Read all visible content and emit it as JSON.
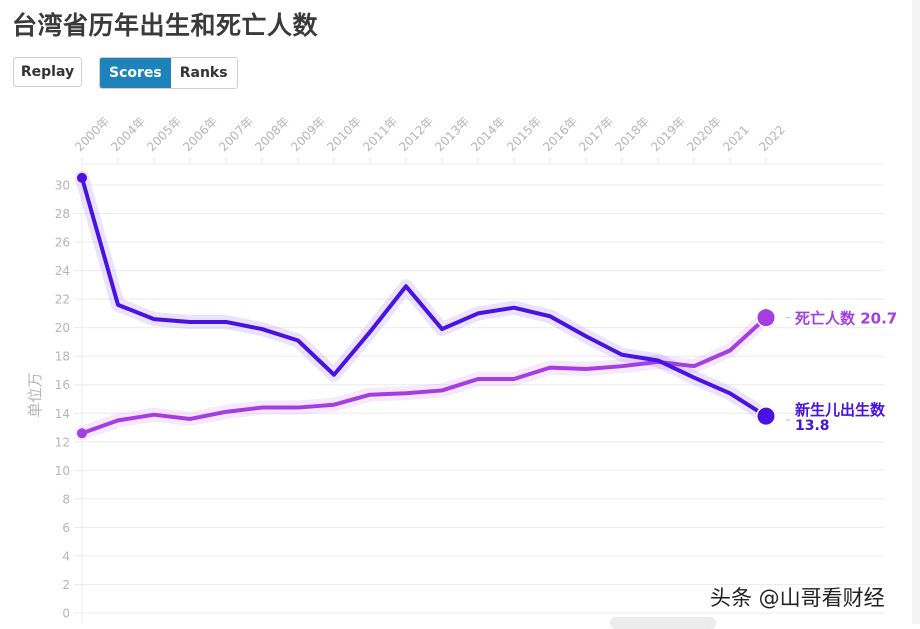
{
  "title": "台湾省历年出生和死亡人数",
  "controls": {
    "replay_label": "Replay",
    "mode_options": [
      "Scores",
      "Ranks"
    ],
    "active_mode": "Scores"
  },
  "watermark": "头条 @山哥看财经",
  "colors": {
    "births": "#4a12e0",
    "deaths": "#a43ee0",
    "active_button": "#1e83bb",
    "grid": "#ececec",
    "axis_text": "#b5b5b5"
  },
  "end_labels": {
    "deaths": {
      "name": "死亡人数",
      "value": "20.7"
    },
    "births": {
      "name": "新生儿出生数",
      "value": "13.8"
    }
  },
  "chart_data": {
    "type": "line",
    "title": "台湾省历年出生和死亡人数",
    "xlabel": "",
    "ylabel": "单位万",
    "ylim": [
      0,
      30
    ],
    "yticks": [
      0,
      2,
      4,
      6,
      8,
      10,
      12,
      14,
      16,
      18,
      20,
      22,
      24,
      26,
      28,
      30
    ],
    "grid": true,
    "x_axis_position": "top",
    "legend_position": "inline-end-labels",
    "categories": [
      "2000年",
      "2004年",
      "2005年",
      "2006年",
      "2007年",
      "2008年",
      "2009年",
      "2010年",
      "2011年",
      "2012年",
      "2013年",
      "2014年",
      "2015年",
      "2016年",
      "2017年",
      "2018年",
      "2019年",
      "2020年",
      "2021",
      "2022"
    ],
    "series": [
      {
        "name": "新生儿出生数",
        "values": [
          30.5,
          21.6,
          20.6,
          20.4,
          20.4,
          19.9,
          19.1,
          16.7,
          19.7,
          22.9,
          19.9,
          21.0,
          21.4,
          20.8,
          19.4,
          18.1,
          17.7,
          16.5,
          15.4,
          13.8
        ]
      },
      {
        "name": "死亡人数",
        "values": [
          12.6,
          13.5,
          13.9,
          13.6,
          14.1,
          14.4,
          14.4,
          14.6,
          15.3,
          15.4,
          15.6,
          16.4,
          16.4,
          17.2,
          17.1,
          17.3,
          17.6,
          17.3,
          18.4,
          20.7
        ]
      }
    ]
  }
}
